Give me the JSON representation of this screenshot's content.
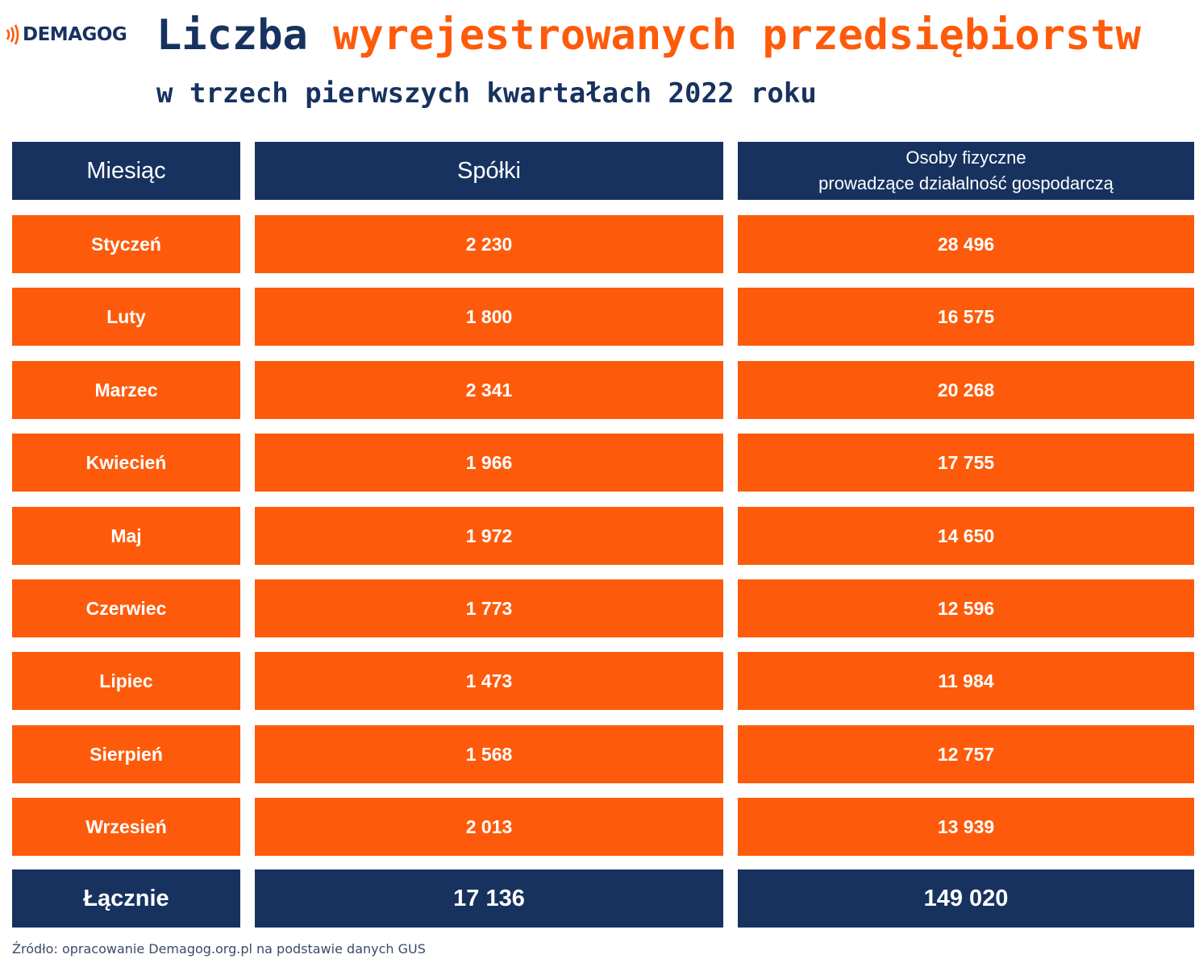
{
  "logo": {
    "text": "DEMAGOG",
    "icon": "sound-waves-icon",
    "color": "#fd5b0b"
  },
  "title": {
    "part1": "Liczba ",
    "part2": "wyrejestrowanych przedsiębiorstw"
  },
  "subtitle": "w trzech pierwszych kwartałach 2022 roku",
  "colors": {
    "navy": "#17325f",
    "orange": "#fd5b0b"
  },
  "chart_data": {
    "type": "table",
    "title": "Liczba wyrejestrowanych przedsiębiorstw",
    "subtitle": "w trzech pierwszych kwartałach 2022 roku",
    "columns": [
      "Miesiąc",
      "Spółki",
      "Osoby fizyczne",
      "prowadzące działalność gospodarczą"
    ],
    "rows": [
      {
        "label": "Styczeń",
        "spolki": "2 230",
        "osoby": "28 496"
      },
      {
        "label": "Luty",
        "spolki": "1 800",
        "osoby": "16 575"
      },
      {
        "label": "Marzec",
        "spolki": "2 341",
        "osoby": "20 268"
      },
      {
        "label": "Kwiecień",
        "spolki": "1 966",
        "osoby": "17 755"
      },
      {
        "label": "Maj",
        "spolki": "1 972",
        "osoby": "14 650"
      },
      {
        "label": "Czerwiec",
        "spolki": "1 773",
        "osoby": "12 596"
      },
      {
        "label": "Lipiec",
        "spolki": "1 473",
        "osoby": "11 984"
      },
      {
        "label": "Sierpień",
        "spolki": "1 568",
        "osoby": "12 757"
      },
      {
        "label": "Wrzesień",
        "spolki": "2 013",
        "osoby": "13 939"
      }
    ],
    "total": {
      "label": "Łącznie",
      "spolki": "17 136",
      "osoby": "149 020"
    }
  },
  "source": "Źródło: opracowanie Demagog.org.pl na podstawie danych GUS"
}
